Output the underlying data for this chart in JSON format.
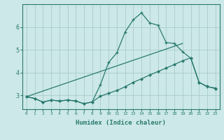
{
  "xlabel": "Humidex (Indice chaleur)",
  "background_color": "#cce8e8",
  "grid_color": "#aacccc",
  "line_color": "#2a7a70",
  "xlim": [
    -0.5,
    23.5
  ],
  "ylim": [
    2.4,
    7.0
  ],
  "yticks": [
    3,
    4,
    5,
    6
  ],
  "xticks": [
    0,
    1,
    2,
    3,
    4,
    5,
    6,
    7,
    8,
    9,
    10,
    11,
    12,
    13,
    14,
    15,
    16,
    17,
    18,
    19,
    20,
    21,
    22,
    23
  ],
  "line1_x": [
    0,
    1,
    2,
    3,
    4,
    5,
    6,
    7,
    8,
    9,
    10,
    11,
    12,
    13,
    14,
    15,
    16,
    17,
    18,
    19,
    20,
    21,
    22,
    23
  ],
  "line1_y": [
    2.95,
    2.87,
    2.71,
    2.8,
    2.76,
    2.8,
    2.76,
    2.64,
    2.72,
    3.48,
    4.45,
    4.87,
    5.78,
    6.32,
    6.62,
    6.18,
    6.08,
    5.32,
    5.28,
    4.92,
    4.63,
    3.58,
    3.38,
    3.33
  ],
  "line2_x": [
    0,
    1,
    2,
    3,
    4,
    5,
    6,
    7,
    8,
    9,
    10,
    11,
    12,
    13,
    14,
    15,
    16,
    17,
    18,
    19,
    20,
    21,
    22,
    23
  ],
  "line2_y": [
    2.95,
    2.87,
    2.71,
    2.8,
    2.76,
    2.8,
    2.76,
    2.64,
    2.72,
    2.97,
    3.1,
    3.22,
    3.38,
    3.58,
    3.73,
    3.9,
    4.05,
    4.2,
    4.36,
    4.52,
    4.65,
    3.58,
    3.4,
    3.3
  ],
  "line3_x": [
    0,
    19
  ],
  "line3_y": [
    2.95,
    5.28
  ]
}
